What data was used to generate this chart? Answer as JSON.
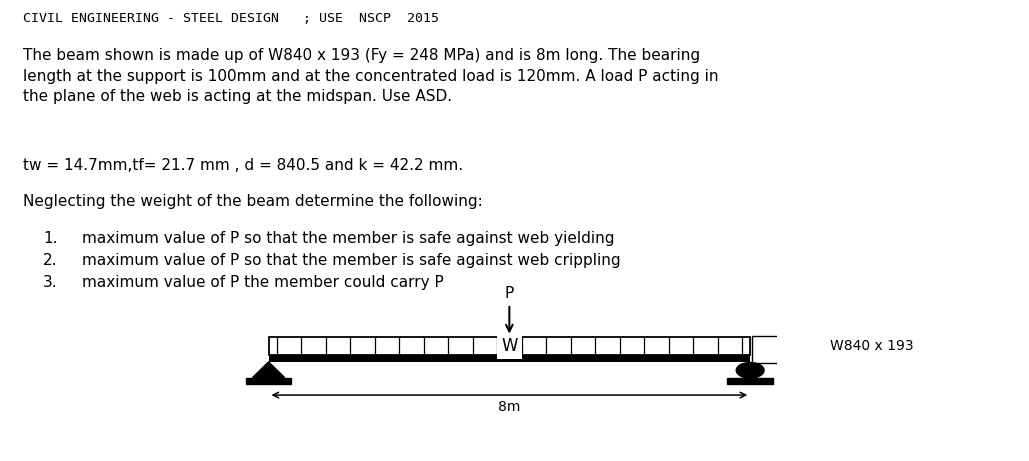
{
  "title_line": "CIVIL ENGINEERING - STEEL DESIGN   ; USE  NSCP  2015",
  "paragraph1": "The beam shown is made up of W840 x 193 (Fy = 248 MPa) and is 8m long. The bearing\nlength at the support is 100mm and at the concentrated load is 120mm. A load P acting in\nthe plane of the web is acting at the midspan. Use ASD.",
  "paragraph2": "tw = 14.7mm,tf= 21.7 mm , d = 840.5 and k = 42.2 mm.",
  "paragraph3": "Neglecting the weight of the beam determine the following:",
  "items": [
    "maximum value of P so that the member is safe against web yielding",
    "maximum value of P so that the member is safe against web crippling",
    "maximum value of P the member could carry P"
  ],
  "beam_label": "8m",
  "section_label": "W840 x 193",
  "load_label": "P",
  "udl_label": "W",
  "bg_color": "#ffffff",
  "text_color": "#000000",
  "title_font": "monospace",
  "body_font": "DejaVu Sans",
  "body_fontsize": 11.0,
  "title_fontsize": 9.5
}
